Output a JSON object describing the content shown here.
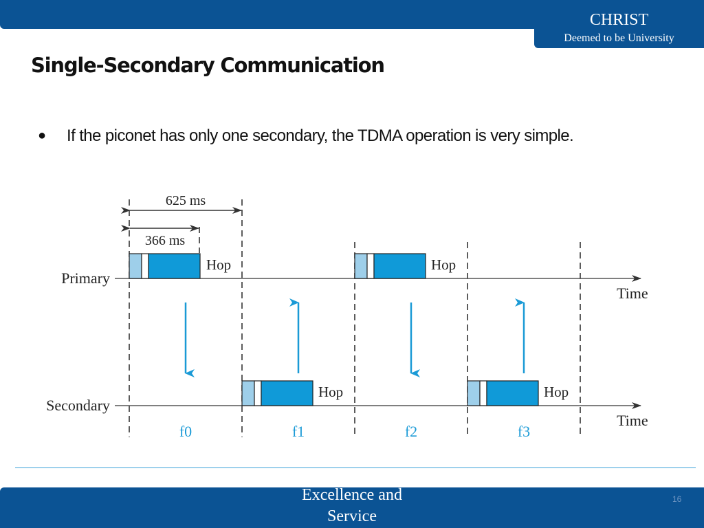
{
  "header": {
    "brand_name": "CHRIST",
    "brand_sub": "Deemed to be University"
  },
  "slide": {
    "title": "Single-Secondary Communication",
    "bullet": "If the piconet has only one secondary, the TDMA operation is very simple."
  },
  "diagram": {
    "dim_625": "625 ms",
    "dim_366": "366 ms",
    "primary_label": "Primary",
    "secondary_label": "Secondary",
    "time_label": "Time",
    "hop_label": "Hop",
    "freq_labels": [
      "f0",
      "f1",
      "f2",
      "f3"
    ],
    "colors": {
      "packet_light": "#9ecfea",
      "packet_main": "#109ad8",
      "arrow": "#1a9ad6",
      "freq": "#1a9ad6"
    }
  },
  "footer": {
    "motto_line1": "Excellence and",
    "motto_line2": "Service",
    "page_number": "16"
  }
}
